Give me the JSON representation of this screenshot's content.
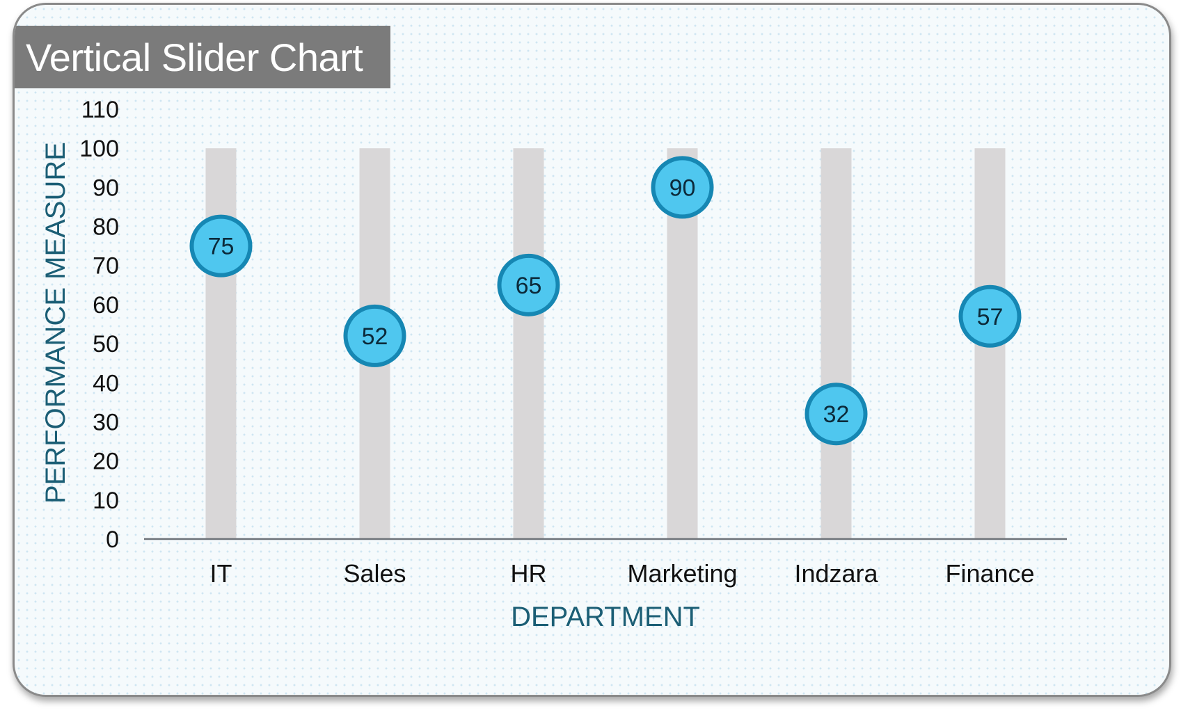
{
  "chart_data": {
    "type": "scatter",
    "title": "Vertical Slider Chart",
    "xlabel": "DEPARTMENT",
    "ylabel": "PERFORMANCE MEASURE",
    "categories": [
      "IT",
      "Sales",
      "HR",
      "Marketing",
      "Indzara",
      "Finance"
    ],
    "values": [
      75,
      52,
      65,
      90,
      32,
      57
    ],
    "track_max": 100,
    "ylim": [
      0,
      110
    ],
    "yticks": [
      "0",
      "10",
      "20",
      "30",
      "40",
      "50",
      "60",
      "70",
      "80",
      "90",
      "100",
      "110"
    ],
    "grid": false,
    "legend": "none",
    "colors": {
      "track": "#d9d7d8",
      "marker_fill": "#4fc7ef",
      "marker_stroke": "#1687b3",
      "axis_title": "#1b5e75",
      "axis_line": "#6d7278",
      "title_bg": "#7b7b7b"
    }
  }
}
